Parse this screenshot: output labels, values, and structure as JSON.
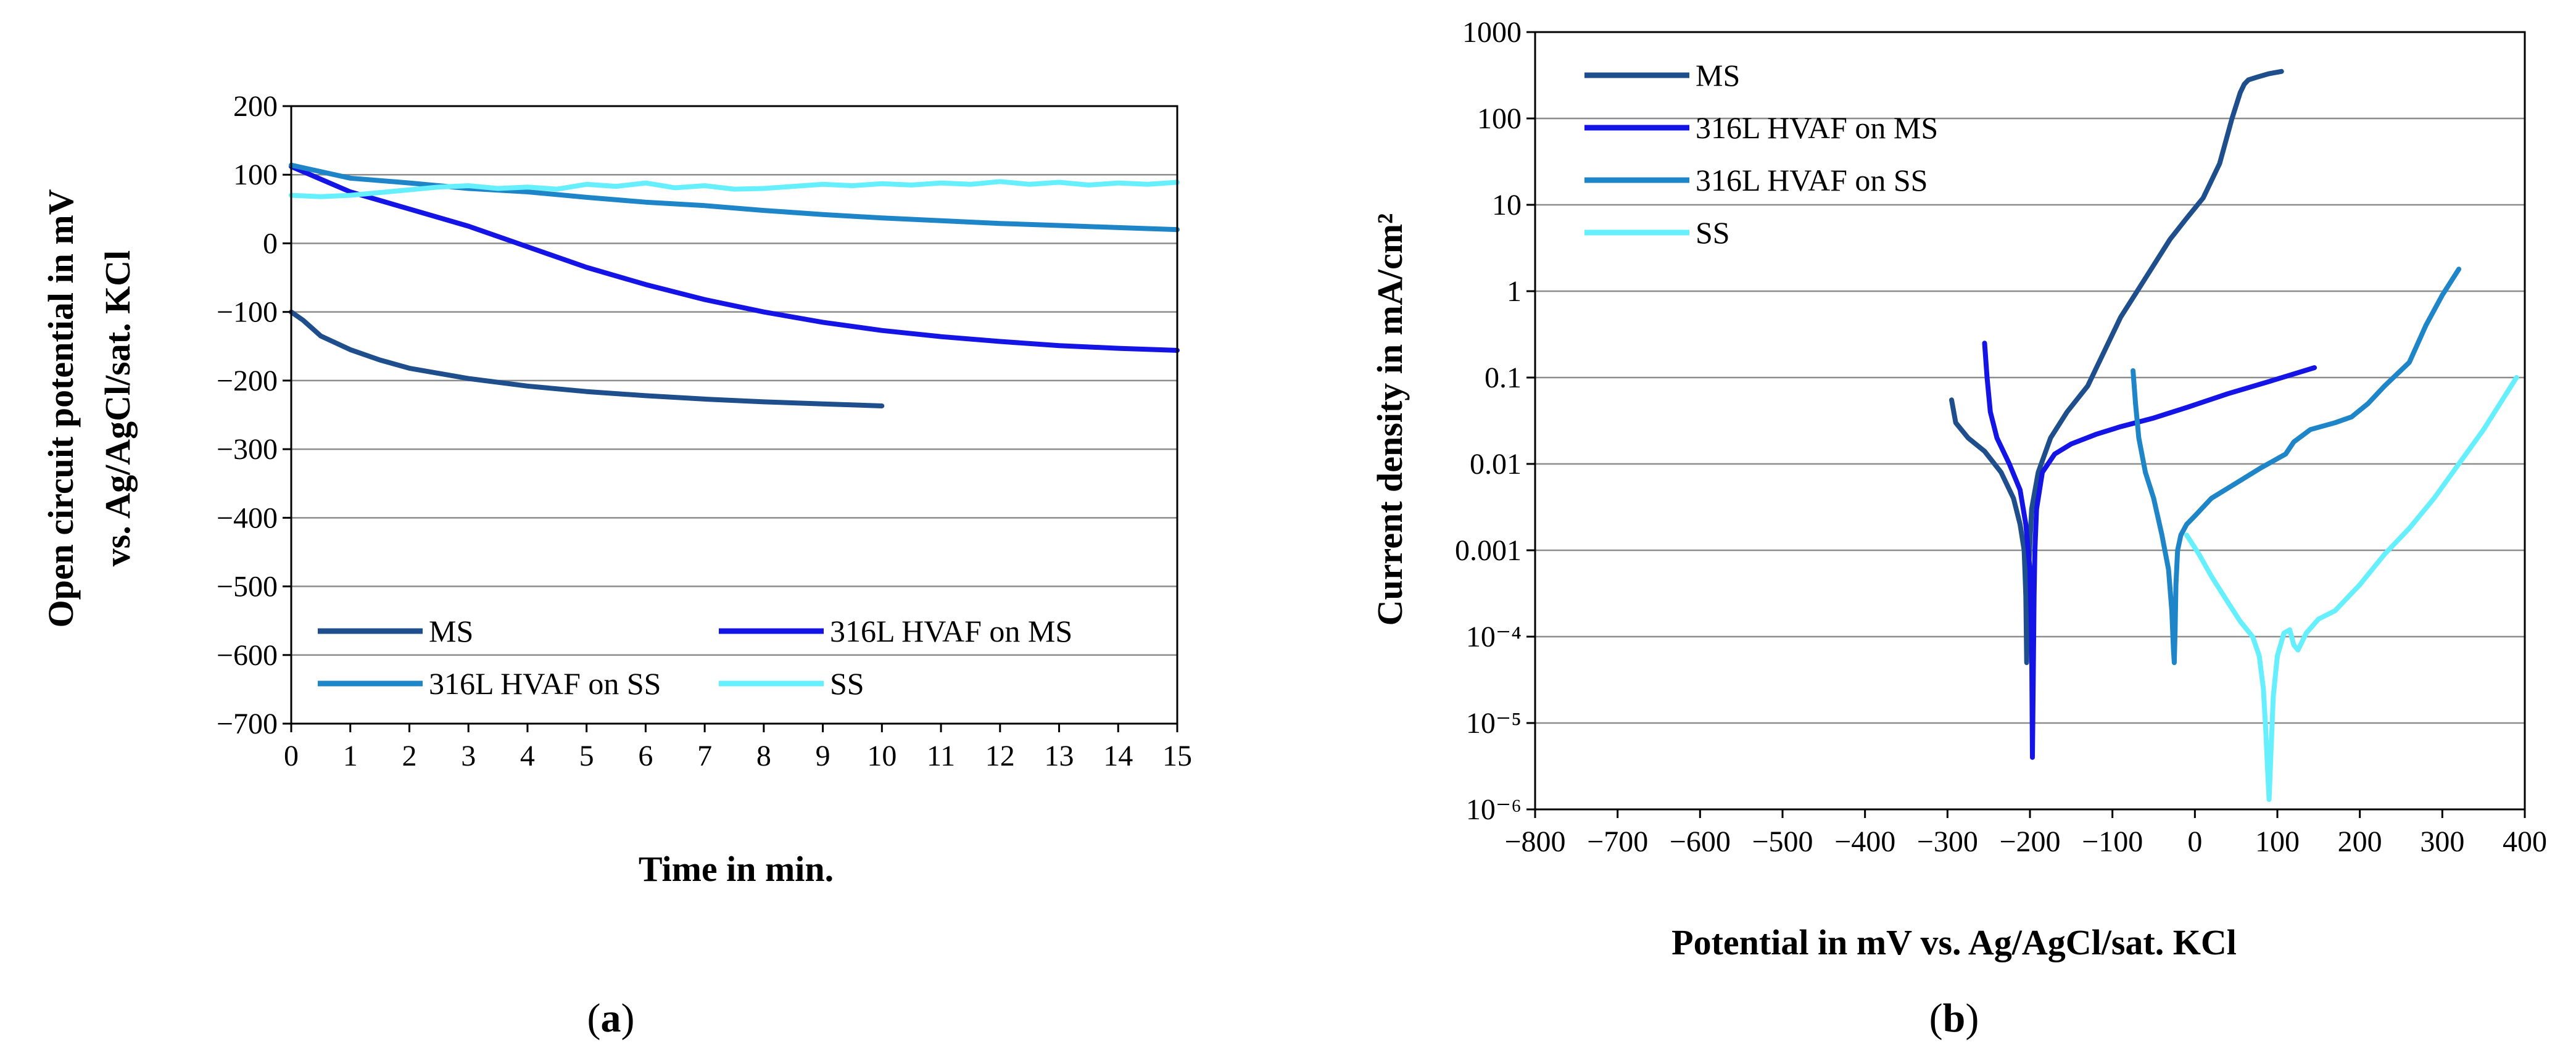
{
  "figure": {
    "panels": [
      {
        "label_open": "(",
        "label_letter": "a",
        "label_close": ")"
      },
      {
        "label_open": "(",
        "label_letter": "b",
        "label_close": ")"
      }
    ]
  },
  "chart_data": [
    {
      "type": "line",
      "panel": "a",
      "title": "",
      "xlabel": "Time in min.",
      "ylabel": [
        "Open circuit potential in mV",
        "vs. Ag/AgCl/sat. KCl"
      ],
      "xlim": [
        0,
        15
      ],
      "ylim": [
        -700,
        200
      ],
      "xticks": [
        0,
        1,
        2,
        3,
        4,
        5,
        6,
        7,
        8,
        9,
        10,
        11,
        12,
        13,
        14,
        15
      ],
      "xtick_labels": [
        "0",
        "1",
        "2",
        "3",
        "4",
        "5",
        "6",
        "7",
        "8",
        "9",
        "10",
        "11",
        "12",
        "13",
        "14",
        "15"
      ],
      "yticks": [
        200,
        100,
        0,
        -100,
        -200,
        -300,
        -400,
        -500,
        -600,
        -700
      ],
      "ytick_labels": [
        "200",
        "100",
        "0",
        "−100",
        "−200",
        "−300",
        "−400",
        "−500",
        "−600",
        "−700"
      ],
      "grid": "horizontal",
      "legend": {
        "placement": "bottom",
        "columns": 2
      },
      "series": [
        {
          "name": "MS",
          "color": "#1f4e8c",
          "x": [
            0,
            0.2,
            0.5,
            1,
            1.5,
            2,
            3,
            4,
            5,
            6,
            7,
            8,
            9,
            10
          ],
          "y": [
            -100,
            -112,
            -135,
            -155,
            -170,
            -182,
            -197,
            -208,
            -216,
            -222,
            -227,
            -231,
            -234,
            -237
          ]
        },
        {
          "name": "316L HVAF on MS",
          "color": "#1414e6",
          "x": [
            0,
            1,
            2,
            3,
            4,
            5,
            6,
            7,
            8,
            9,
            10,
            11,
            12,
            13,
            14,
            15
          ],
          "y": [
            112,
            75,
            50,
            25,
            -5,
            -35,
            -60,
            -82,
            -100,
            -115,
            -127,
            -136,
            -143,
            -149,
            -153,
            -156
          ]
        },
        {
          "name": "316L HVAF on SS",
          "color": "#1e86c8",
          "x": [
            0,
            1,
            2,
            3,
            4,
            5,
            6,
            7,
            8,
            9,
            10,
            11,
            12,
            13,
            14,
            15
          ],
          "y": [
            114,
            95,
            88,
            80,
            75,
            67,
            60,
            55,
            48,
            42,
            37,
            33,
            29,
            26,
            23,
            20
          ]
        },
        {
          "name": "SS",
          "color": "#66f0ff",
          "x": [
            0,
            0.5,
            1,
            1.5,
            2,
            2.5,
            3,
            3.5,
            4,
            4.5,
            5,
            5.5,
            6,
            6.5,
            7,
            7.5,
            8,
            8.5,
            9,
            9.5,
            10,
            10.5,
            11,
            11.5,
            12,
            12.5,
            13,
            13.5,
            14,
            14.5,
            15
          ],
          "y": [
            70,
            68,
            70,
            74,
            78,
            82,
            84,
            80,
            82,
            79,
            86,
            83,
            88,
            81,
            84,
            79,
            80,
            83,
            86,
            84,
            87,
            85,
            88,
            86,
            90,
            86,
            89,
            85,
            88,
            86,
            89
          ]
        }
      ]
    },
    {
      "type": "line",
      "panel": "b",
      "title": "",
      "xlabel": "Potential in mV vs. Ag/AgCl/sat. KCl",
      "ylabel": "Current density in mA/cm²",
      "yscale": "log",
      "xlim": [
        -800,
        400
      ],
      "ylim": [
        1e-06,
        1000
      ],
      "xticks": [
        -800,
        -700,
        -600,
        -500,
        -400,
        -300,
        -200,
        -100,
        0,
        100,
        200,
        300,
        400
      ],
      "xtick_labels": [
        "−800",
        "−700",
        "−600",
        "−500",
        "−400",
        "−300",
        "−200",
        "−100",
        "0",
        "100",
        "200",
        "300",
        "400"
      ],
      "yticks": [
        1000,
        100,
        10,
        1,
        0.1,
        0.01,
        0.001,
        0.0001,
        1e-05,
        1e-06
      ],
      "ytick_labels": [
        "1000",
        "100",
        "10",
        "1",
        "0.1",
        "0.01",
        "0.001",
        "10⁻⁴",
        "10⁻⁵",
        "10⁻⁶"
      ],
      "grid": "horizontal",
      "legend": {
        "placement": "top-left",
        "columns": 1
      },
      "series": [
        {
          "name": "MS",
          "color": "#1f4e8c",
          "x": [
            -295,
            -290,
            -275,
            -255,
            -235,
            -220,
            -212,
            -207,
            -205,
            -204,
            -202,
            -198,
            -190,
            -175,
            -155,
            -130,
            -110,
            -90,
            -70,
            -50,
            -30,
            -10,
            10,
            30,
            45,
            55,
            60,
            65,
            75,
            90,
            105
          ],
          "y": [
            0.055,
            0.03,
            0.02,
            0.014,
            0.008,
            0.004,
            0.002,
            0.001,
            0.0003,
            5e-05,
            0.0005,
            0.003,
            0.008,
            0.02,
            0.04,
            0.08,
            0.2,
            0.5,
            1,
            2,
            4,
            7,
            12,
            30,
            100,
            200,
            250,
            280,
            300,
            330,
            350
          ]
        },
        {
          "name": "316L HVAF on MS",
          "color": "#1414e6",
          "x": [
            -255,
            -252,
            -248,
            -240,
            -225,
            -212,
            -205,
            -200,
            -198,
            -197,
            -196,
            -195,
            -194,
            -192,
            -185,
            -170,
            -150,
            -120,
            -90,
            -50,
            -10,
            40,
            90,
            145
          ],
          "y": [
            0.25,
            0.1,
            0.04,
            0.02,
            0.01,
            0.005,
            0.002,
            0.0006,
            0.0001,
            4e-06,
            3e-05,
            0.0003,
            0.001,
            0.003,
            0.008,
            0.013,
            0.017,
            0.022,
            0.027,
            0.034,
            0.045,
            0.065,
            0.09,
            0.13
          ]
        },
        {
          "name": "316L HVAF on SS",
          "color": "#1e86c8",
          "x": [
            -75,
            -72,
            -68,
            -60,
            -50,
            -40,
            -32,
            -28,
            -26,
            -25,
            -24,
            -23,
            -21,
            -17,
            -10,
            0,
            20,
            50,
            80,
            110,
            120,
            140,
            170,
            190,
            210,
            230,
            260,
            280,
            300,
            320
          ],
          "y": [
            0.12,
            0.05,
            0.02,
            0.008,
            0.004,
            0.0015,
            0.0006,
            0.0002,
            7e-05,
            5e-05,
            0.00012,
            0.0004,
            0.001,
            0.0015,
            0.002,
            0.0025,
            0.004,
            0.006,
            0.009,
            0.013,
            0.018,
            0.025,
            0.03,
            0.035,
            0.05,
            0.08,
            0.15,
            0.4,
            0.9,
            1.8
          ]
        },
        {
          "name": "SS",
          "color": "#66f0ff",
          "x": [
            -10,
            5,
            20,
            40,
            55,
            70,
            78,
            83,
            86,
            88,
            90,
            92,
            95,
            100,
            108,
            115,
            120,
            125,
            135,
            150,
            170,
            200,
            230,
            260,
            290,
            320,
            350,
            370,
            390
          ],
          "y": [
            0.0015,
            0.0009,
            0.0005,
            0.00025,
            0.00015,
            0.0001,
            6e-05,
            2.5e-05,
            8e-06,
            3e-06,
            1.3e-06,
            4e-06,
            2e-05,
            6e-05,
            0.00011,
            0.00012,
            8e-05,
            7e-05,
            0.00011,
            0.00016,
            0.0002,
            0.0004,
            0.0009,
            0.0018,
            0.004,
            0.01,
            0.025,
            0.05,
            0.1
          ]
        }
      ]
    }
  ]
}
